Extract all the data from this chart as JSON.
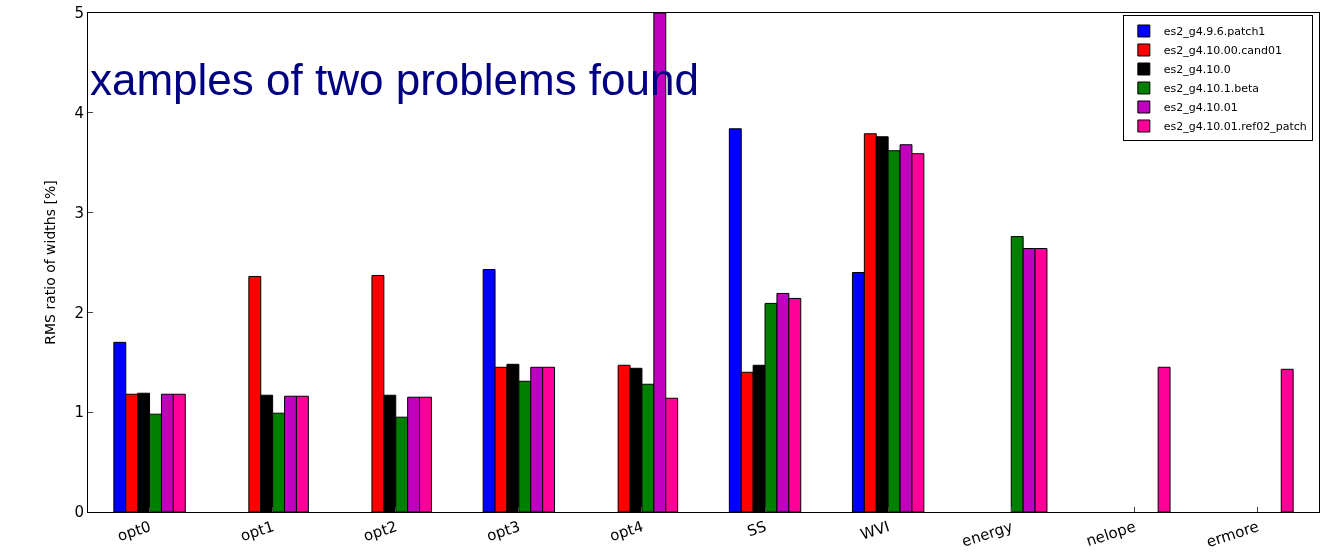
{
  "chart_data": {
    "type": "bar",
    "title": "xamples of two problems found",
    "ylabel": "RMS ratio of widths [%]",
    "categories": [
      "opt0",
      "opt1",
      "opt2",
      "opt3",
      "opt4",
      "SS",
      "WVI",
      "energy",
      "nelope",
      "ermore"
    ],
    "series": [
      {
        "name": "es2_g4.9.6.patch1",
        "color": "#0000ff",
        "values": [
          1.7,
          null,
          null,
          2.43,
          null,
          3.84,
          2.4,
          null,
          null,
          null
        ]
      },
      {
        "name": "es2_g4.10.00.cand01",
        "color": "#ff0000",
        "values": [
          1.18,
          2.36,
          2.37,
          1.45,
          1.47,
          1.4,
          3.79,
          null,
          null,
          null
        ]
      },
      {
        "name": "es2_g4.10.0",
        "color": "#000000",
        "values": [
          1.19,
          1.17,
          1.17,
          1.48,
          1.44,
          1.47,
          3.76,
          null,
          null,
          null
        ]
      },
      {
        "name": "es2_g4.10.1.beta",
        "color": "#008000",
        "values": [
          0.98,
          0.99,
          0.95,
          1.31,
          1.28,
          2.09,
          3.62,
          2.76,
          null,
          null
        ]
      },
      {
        "name": "es2_g4.10.01",
        "color": "#bf00bf",
        "values": [
          1.18,
          1.16,
          1.15,
          1.45,
          5,
          2.19,
          3.68,
          2.64,
          null,
          null
        ]
      },
      {
        "name": "es2_g4.10.01.ref02_patch",
        "color": "#ff0099",
        "values": [
          1.18,
          1.16,
          1.15,
          1.45,
          1.14,
          2.14,
          3.59,
          2.64,
          1.45,
          1.43
        ]
      }
    ],
    "ylim": [
      0,
      5
    ],
    "yticks": [
      0,
      1,
      2,
      3,
      4,
      5
    ],
    "legend": "top right"
  }
}
